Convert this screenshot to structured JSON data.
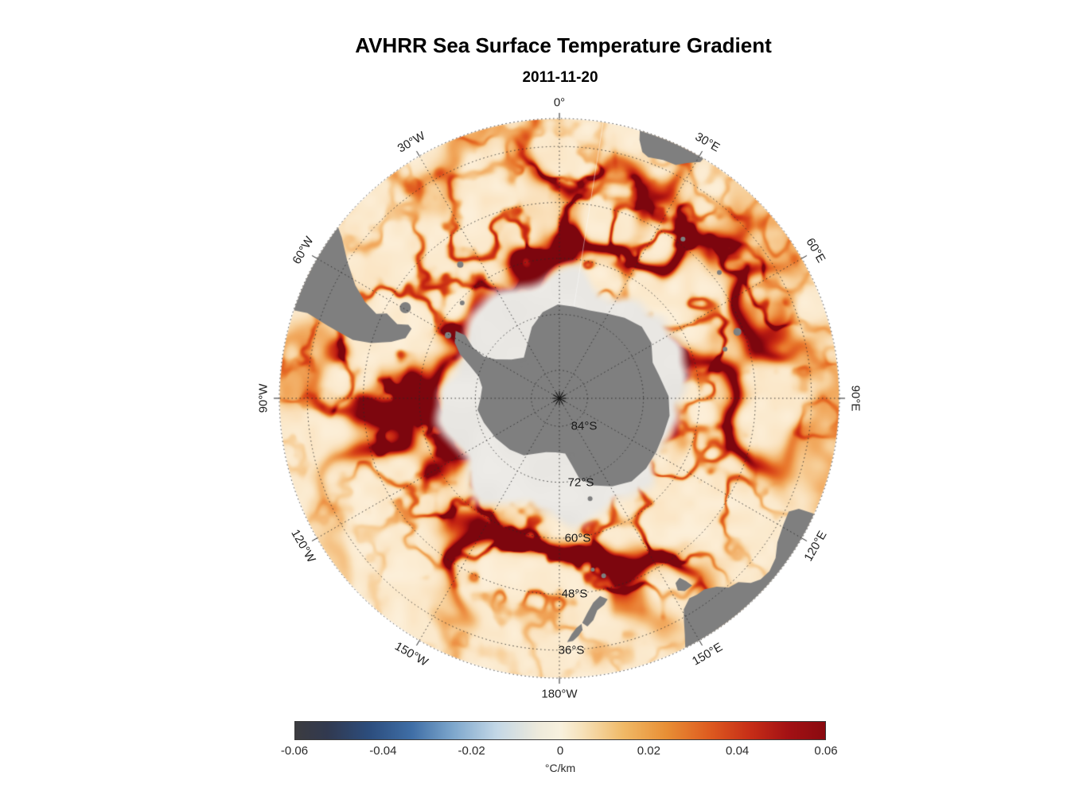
{
  "title": "AVHRR Sea Surface Temperature Gradient",
  "subtitle": "2011-11-20",
  "map": {
    "meridian_labels": [
      {
        "text": "0°",
        "azimuth_deg": 0
      },
      {
        "text": "30°E",
        "azimuth_deg": 30
      },
      {
        "text": "60°E",
        "azimuth_deg": 60
      },
      {
        "text": "90°E",
        "azimuth_deg": 90
      },
      {
        "text": "120°E",
        "azimuth_deg": 120
      },
      {
        "text": "150°E",
        "azimuth_deg": 150
      },
      {
        "text": "180°W",
        "azimuth_deg": 180
      },
      {
        "text": "150°W",
        "azimuth_deg": 210
      },
      {
        "text": "120°W",
        "azimuth_deg": 240
      },
      {
        "text": "90°W",
        "azimuth_deg": 270
      },
      {
        "text": "60°W",
        "azimuth_deg": 300
      },
      {
        "text": "30°W",
        "azimuth_deg": 330
      }
    ],
    "parallel_labels": [
      {
        "text": "84°S",
        "lat_s": 84
      },
      {
        "text": "72°S",
        "lat_s": 72
      },
      {
        "text": "60°S",
        "lat_s": 60
      },
      {
        "text": "48°S",
        "lat_s": 48
      },
      {
        "text": "36°S",
        "lat_s": 36
      }
    ],
    "land_color": "#7f7f7f",
    "ice_color": "#efedea",
    "ocean_base_color": "#fcf3e1",
    "graticule_color": "#3c3c3c"
  },
  "colorbar": {
    "ticks": [
      "-0.06",
      "-0.04",
      "-0.02",
      "0",
      "0.02",
      "0.04",
      "0.06"
    ],
    "unit": "°C/km",
    "min": -0.06,
    "max": 0.06,
    "gradient": [
      [
        0.0,
        "#3c3c40"
      ],
      [
        0.06,
        "#31394f"
      ],
      [
        0.14,
        "#2c4d7d"
      ],
      [
        0.22,
        "#3f6ea6"
      ],
      [
        0.3,
        "#7fa8cd"
      ],
      [
        0.38,
        "#c3d7e6"
      ],
      [
        0.46,
        "#eeeadb"
      ],
      [
        0.5,
        "#f8f1de"
      ],
      [
        0.54,
        "#f6e2bb"
      ],
      [
        0.62,
        "#f0b966"
      ],
      [
        0.7,
        "#e88f35"
      ],
      [
        0.78,
        "#de5c20"
      ],
      [
        0.86,
        "#c62d17"
      ],
      [
        0.93,
        "#a31114"
      ],
      [
        1.0,
        "#8a0a10"
      ]
    ]
  },
  "chart_data": {
    "type": "heatmap",
    "title": "AVHRR Sea Surface Temperature Gradient",
    "subtitle": "2011-11-20",
    "projection": "south polar azimuthal",
    "value_unit": "°C/km",
    "value_range": [
      -0.06,
      0.06
    ],
    "colorbar_ticks": [
      -0.06,
      -0.04,
      -0.02,
      0,
      0.02,
      0.04,
      0.06
    ],
    "parallels_labeled_deg_s": [
      84,
      72,
      60,
      48,
      36
    ],
    "meridians_labeled_deg_every": 30,
    "visible_features": [
      "Antarctica and surrounding landmasses (South America tip, southern Africa, Australia, New Zealand) shown in gray",
      "near-zero gradient pale sea-ice zone encircling Antarctica",
      "strong positive SST-gradient filaments (orange to dark red) forming a meandering circumpolar belt near 40-60S",
      "strongest dark-red gradients in the Agulhas Return Current sector (30E-90E)"
    ]
  }
}
